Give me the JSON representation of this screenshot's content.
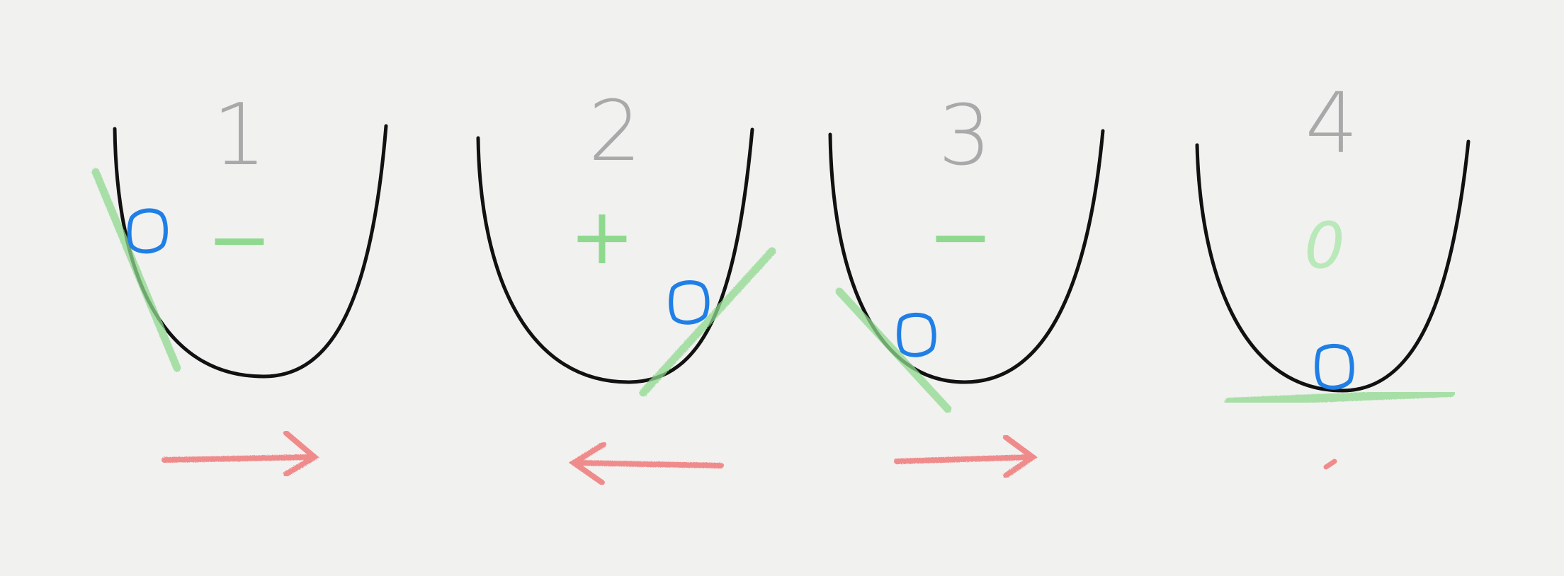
{
  "colors": {
    "background": "#f1f1f0",
    "curve": "#111111",
    "ball": "#1f7fe6",
    "tangent": "#8fd98f",
    "number": "#a9a9a9",
    "arrow": "#f07a7a"
  },
  "icons": [
    "parabola-curve",
    "ball",
    "tangent-line",
    "direction-arrow"
  ],
  "panels": [
    {
      "number": "1",
      "sign": "−",
      "arrow_direction": "right",
      "ball_side": "left-slope"
    },
    {
      "number": "2",
      "sign": "+",
      "arrow_direction": "left",
      "ball_side": "right-slope"
    },
    {
      "number": "3",
      "sign": "−",
      "arrow_direction": "right",
      "ball_side": "left-slope"
    },
    {
      "number": "4",
      "sign": "0",
      "arrow_direction": "none",
      "ball_side": "bottom"
    }
  ]
}
